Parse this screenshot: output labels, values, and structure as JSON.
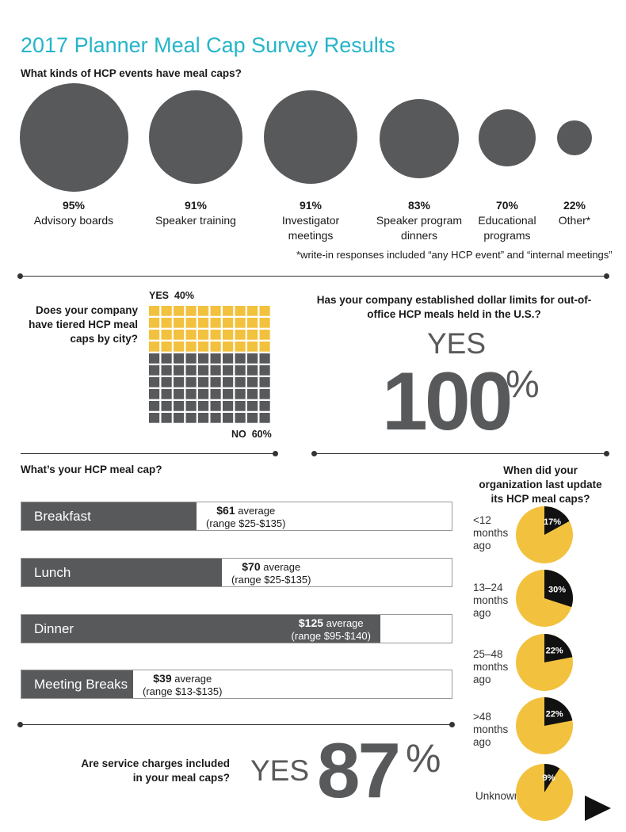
{
  "title": "2017 Planner Meal Cap Survey Results",
  "colors": {
    "accent": "#25b5c9",
    "dark": "#58595b",
    "yellow": "#f2c13e"
  },
  "events": {
    "question": "What kinds of HCP events have meal caps?",
    "items": [
      {
        "pct": "95%",
        "label": "Advisory boards",
        "value": 95
      },
      {
        "pct": "91%",
        "label": "Speaker training",
        "value": 91
      },
      {
        "pct": "91%",
        "label": "Investigator meetings",
        "value": 91
      },
      {
        "pct": "83%",
        "label": "Speaker program dinners",
        "value": 83
      },
      {
        "pct": "70%",
        "label": "Educational programs",
        "value": 70
      },
      {
        "pct": "22%",
        "label": "Other*",
        "value": 22
      }
    ],
    "footnote": "*write-in responses included “any HCP event” and “internal meetings”"
  },
  "tiered": {
    "question": "Does your company have tiered HCP meal caps by city?",
    "yes_label": "YES  40%",
    "no_label": "NO  60%",
    "yes_value": 40,
    "no_value": 60
  },
  "dollar_limits": {
    "question": "Has your company established dollar limits for out-of-office HCP meals held in the U.S.?",
    "answer": "YES",
    "value": "100",
    "unit": "%"
  },
  "meal_cap": {
    "question": "What’s your HCP meal cap?",
    "scale_max": 150,
    "bars": [
      {
        "label": "Breakfast",
        "amount": "$61",
        "avg_word": "average",
        "range": "(range $25-$135)",
        "value": 61
      },
      {
        "label": "Lunch",
        "amount": "$70",
        "avg_word": "average",
        "range": "(range $25-$135)",
        "value": 70
      },
      {
        "label": "Dinner",
        "amount": "$125",
        "avg_word": "average",
        "range": "(range $95-$140)",
        "value": 125
      },
      {
        "label": "Meeting Breaks",
        "amount": "$39",
        "avg_word": "average",
        "range": "(range $13-$135)",
        "value": 39
      }
    ]
  },
  "update": {
    "question": "When did your organization last update its HCP meal caps?",
    "items": [
      {
        "label": "<12 months ago",
        "pct": "17%",
        "value": 17
      },
      {
        "label": "13–24 months ago",
        "pct": "30%",
        "value": 30
      },
      {
        "label": "25–48 months ago",
        "pct": "22%",
        "value": 22
      },
      {
        "label": ">48 months ago",
        "pct": "22%",
        "value": 22
      },
      {
        "label": "Unknown",
        "pct": "9%",
        "value": 9
      }
    ]
  },
  "service": {
    "question": "Are service charges included in your meal caps?",
    "answer": "YES",
    "value": "87",
    "unit": "%"
  },
  "chart_data": [
    {
      "type": "bubble",
      "title": "What kinds of HCP events have meal caps?",
      "categories": [
        "Advisory boards",
        "Speaker training",
        "Investigator meetings",
        "Speaker program dinners",
        "Educational programs",
        "Other*"
      ],
      "values": [
        95,
        91,
        91,
        83,
        70,
        22
      ]
    },
    {
      "type": "waffle",
      "title": "Does your company have tiered HCP meal caps by city?",
      "categories": [
        "YES",
        "NO"
      ],
      "values": [
        40,
        60
      ]
    },
    {
      "type": "bar",
      "title": "What’s your HCP meal cap?",
      "categories": [
        "Breakfast",
        "Lunch",
        "Dinner",
        "Meeting Breaks"
      ],
      "values": [
        61,
        70,
        125,
        39
      ],
      "ranges": [
        [
          25,
          135
        ],
        [
          25,
          135
        ],
        [
          95,
          140
        ],
        [
          13,
          135
        ]
      ]
    },
    {
      "type": "pie",
      "title": "When did your organization last update its HCP meal caps?",
      "categories": [
        "<12 months ago",
        "13–24 months ago",
        "25–48 months ago",
        ">48 months ago",
        "Unknown"
      ],
      "values": [
        17,
        30,
        22,
        22,
        9
      ]
    }
  ]
}
